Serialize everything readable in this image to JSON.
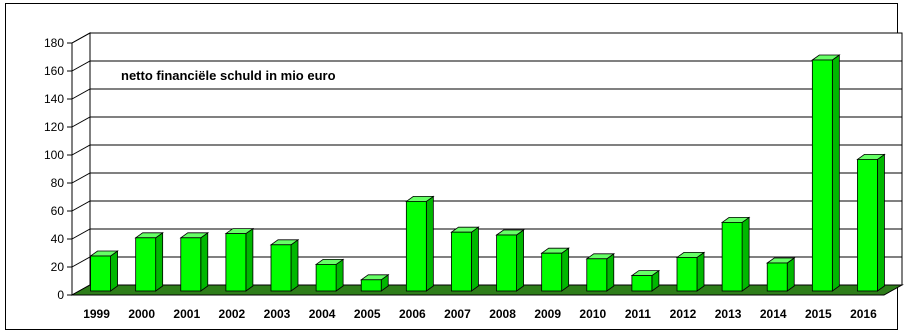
{
  "chart_data": {
    "type": "bar",
    "title": "netto financiële schuld in mio euro",
    "xlabel": "",
    "ylabel": "",
    "categories": [
      "1999",
      "2000",
      "2001",
      "2002",
      "2003",
      "2004",
      "2005",
      "2006",
      "2007",
      "2008",
      "2009",
      "2010",
      "2011",
      "2012",
      "2013",
      "2014",
      "2015",
      "2016"
    ],
    "values": [
      25,
      38,
      38,
      41,
      33,
      19,
      8,
      64,
      42,
      40,
      27,
      23,
      11,
      24,
      49,
      20,
      165,
      94
    ],
    "ylim": [
      0,
      180
    ],
    "yticks": [
      0,
      20,
      40,
      60,
      80,
      100,
      120,
      140,
      160,
      180
    ],
    "grid": true,
    "legend": "none",
    "bar_color": "#00ff00",
    "bar_side_color": "#00b800",
    "bar_top_color": "#66ff66",
    "floor_color": "#2e7d1a"
  }
}
